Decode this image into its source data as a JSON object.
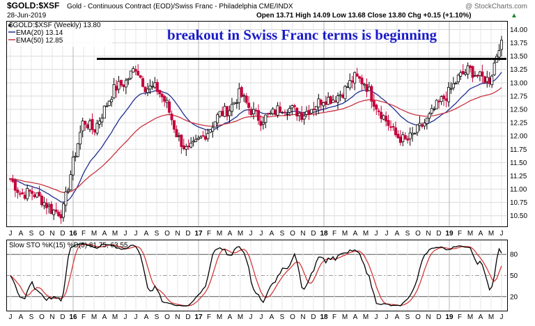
{
  "header": {
    "symbol": "$GOLD:$XSF",
    "description": "Gold - Continuous Contract (EOD)/Swiss Franc - Philadelphia CME/INDX",
    "date": "28-Jun-2019",
    "watermark": "@ StockCharts.com",
    "ohlc": "Open 13.71  High 14.09  Low 13.68  Close 13.80  Chg +0.15 (+1.10%)",
    "ohlc_arrow": "▲"
  },
  "legend": {
    "main": "$GOLD:$XSF (Weekly) 13.80",
    "ema20": "EMA(20) 13.14",
    "ema50": "EMA(50) 12.85"
  },
  "annotation": "breakout in Swiss Franc terms is beginning",
  "indicator": {
    "label": "Slow STO %K(15) %D(5) 81.75, 63.55"
  },
  "colors": {
    "up_candle": "#000000",
    "down_candle": "#c4003a",
    "ema20": "#1f2d8f",
    "ema50": "#c83340",
    "stoch_k": "#000000",
    "stoch_d": "#d23a3a",
    "resistance": "#000000",
    "grid": "#d9d9d9"
  },
  "chart_data": [
    {
      "type": "candlestick",
      "title": "$GOLD:$XSF (Weekly)",
      "ylim": [
        10.3,
        14.15
      ],
      "yticks": [
        10.5,
        10.75,
        11.0,
        11.25,
        11.5,
        11.75,
        12.0,
        12.25,
        12.5,
        12.75,
        13.0,
        13.25,
        13.5,
        13.75,
        14.0
      ],
      "ytick_labels": [
        "10.50",
        "10.75",
        "11.00",
        "11.25",
        "11.50",
        "11.75",
        "12.00",
        "12.25",
        "12.50",
        "12.75",
        "13.00",
        "13.25",
        "13.50",
        "13.75",
        "14.00"
      ],
      "x_axis_labels": [
        "J",
        "A",
        "S",
        "O",
        "N",
        "D",
        "16",
        "F",
        "M",
        "A",
        "M",
        "J",
        "J",
        "A",
        "S",
        "O",
        "N",
        "D",
        "17",
        "F",
        "M",
        "A",
        "M",
        "J",
        "J",
        "A",
        "S",
        "O",
        "N",
        "D",
        "18",
        "F",
        "M",
        "A",
        "M",
        "J",
        "J",
        "A",
        "S",
        "O",
        "N",
        "D",
        "19",
        "F",
        "M",
        "A",
        "M",
        "J"
      ],
      "year_labels": [
        "16",
        "17",
        "18",
        "19"
      ],
      "resistance_level": 13.45,
      "series": [
        {
          "name": "$GOLD:$XSF (Weekly)",
          "close_path_month_end": [
            11.2,
            10.9,
            10.95,
            10.8,
            10.6,
            10.55,
            11.5,
            12.3,
            12.1,
            12.5,
            12.9,
            13.0,
            13.3,
            12.9,
            12.9,
            12.6,
            12.0,
            11.7,
            11.9,
            12.1,
            12.4,
            12.5,
            12.8,
            12.5,
            12.3,
            12.4,
            12.55,
            12.5,
            12.4,
            12.55,
            12.7,
            12.7,
            12.85,
            13.1,
            13.0,
            12.6,
            12.3,
            12.0,
            11.9,
            12.1,
            12.3,
            12.6,
            12.8,
            13.1,
            13.25,
            13.1,
            13.05,
            13.8
          ]
        },
        {
          "name": "EMA(20)",
          "last": 13.14
        },
        {
          "name": "EMA(50)",
          "last": 12.85
        }
      ]
    },
    {
      "type": "line",
      "title": "Slow STO %K(15) %D(5)",
      "ylim": [
        0,
        100
      ],
      "yticks": [
        20,
        50,
        80
      ],
      "ytick_labels": [
        "20",
        "50",
        "80"
      ],
      "series": [
        {
          "name": "%K(15)",
          "last": 81.75
        },
        {
          "name": "%D(5)",
          "last": 63.55
        }
      ]
    }
  ]
}
